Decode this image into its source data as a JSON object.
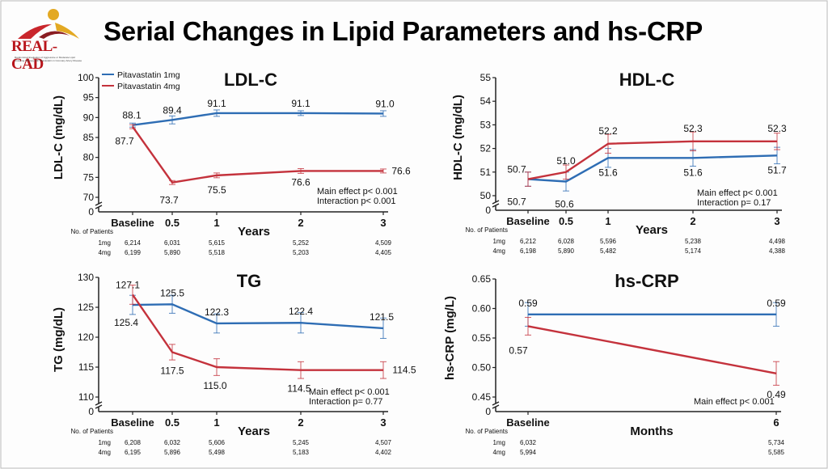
{
  "logo": {
    "text": "REAL-CAD",
    "subtitle": "Randomized Evaluation of Aggressive or Moderate Lipid Lowering Therapy with Pitavastatin in Coronary Artery Disease"
  },
  "title": "Serial Changes in Lipid Parameters and hs-CRP",
  "colors": {
    "pitavastatin_1mg": "#2e6db4",
    "pitavastatin_4mg": "#c4323c",
    "axis": "#222222"
  },
  "chart_data": [
    {
      "type": "line",
      "title": "LDL-C",
      "ylabel": "LDL-C (mg/dL)",
      "xlabel": "Years",
      "categories": [
        "Baseline",
        "0.5",
        "1",
        "2",
        "3"
      ],
      "x": [
        0,
        0.5,
        1,
        2,
        3
      ],
      "ylim": [
        70,
        100
      ],
      "yticks": [
        "70",
        "75",
        "80",
        "85",
        "90",
        "95",
        "100"
      ],
      "axis_break": true,
      "legend": {
        "placement": "top-left",
        "entries": [
          "Pitavastatin 1mg",
          "Pitavastatin 4mg"
        ]
      },
      "series": [
        {
          "name": "Pitavastatin 1mg",
          "values": [
            88.1,
            89.4,
            91.1,
            91.1,
            91.0
          ],
          "labels": [
            "88.1",
            "89.4",
            "91.1",
            "91.1",
            "91.0"
          ],
          "error": [
            0.5,
            1.0,
            0.8,
            0.6,
            0.7
          ]
        },
        {
          "name": "Pitavastatin 4mg",
          "values": [
            87.7,
            73.7,
            75.5,
            76.6,
            76.6
          ],
          "labels": [
            "87.7",
            "73.7",
            "75.5",
            "76.6",
            "76.6"
          ],
          "error": [
            0.5,
            0.5,
            0.6,
            0.6,
            0.5
          ]
        }
      ],
      "stats": [
        "Main effect p< 0.001",
        "Interaction p< 0.001"
      ],
      "patients": {
        "header": "No. of Patients",
        "rows": [
          {
            "label": "1mg",
            "values": [
              "6,214",
              "6,031",
              "5,615",
              "5,252",
              "4,509"
            ]
          },
          {
            "label": "4mg",
            "values": [
              "6,199",
              "5,890",
              "5,518",
              "5,203",
              "4,405"
            ]
          }
        ]
      }
    },
    {
      "type": "line",
      "title": "HDL-C",
      "ylabel": "HDL-C (mg/dL)",
      "xlabel": "Years",
      "categories": [
        "Baseline",
        "0.5",
        "1",
        "2",
        "3"
      ],
      "x": [
        0,
        0.5,
        1,
        2,
        3
      ],
      "ylim": [
        50,
        55
      ],
      "yticks": [
        "50",
        "51",
        "52",
        "53",
        "54",
        "55"
      ],
      "axis_break": true,
      "series": [
        {
          "name": "Pitavastatin 1mg",
          "values": [
            50.7,
            50.6,
            51.6,
            51.6,
            51.7
          ],
          "labels": [
            "50.7",
            "50.6",
            "51.6",
            "51.6",
            "51.7"
          ],
          "error": [
            0.3,
            0.4,
            0.4,
            0.35,
            0.35
          ]
        },
        {
          "name": "Pitavastatin 4mg",
          "values": [
            50.7,
            51.0,
            52.2,
            52.3,
            52.3
          ],
          "labels": [
            "50.7",
            "51.0",
            "52.2",
            "52.3",
            "52.3"
          ],
          "error": [
            0.3,
            0.3,
            0.4,
            0.4,
            0.35
          ]
        }
      ],
      "stats": [
        "Main effect p< 0.001",
        "Interaction p= 0.17"
      ],
      "patients": {
        "header": "No. of Patients",
        "rows": [
          {
            "label": "1mg",
            "values": [
              "6,212",
              "6,028",
              "5,596",
              "5,238",
              "4,498"
            ]
          },
          {
            "label": "4mg",
            "values": [
              "6,198",
              "5,890",
              "5,482",
              "5,174",
              "4,388"
            ]
          }
        ]
      }
    },
    {
      "type": "line",
      "title": "TG",
      "ylabel": "TG (mg/dL)",
      "xlabel": "Years",
      "categories": [
        "Baseline",
        "0.5",
        "1",
        "2",
        "3"
      ],
      "x": [
        0,
        0.5,
        1,
        2,
        3
      ],
      "ylim": [
        110,
        130
      ],
      "yticks": [
        "110",
        "115",
        "120",
        "125",
        "130"
      ],
      "axis_break": true,
      "series": [
        {
          "name": "Pitavastatin 1mg",
          "values": [
            125.4,
            125.5,
            122.3,
            122.4,
            121.5
          ],
          "labels": [
            "125.4",
            "125.5",
            "122.3",
            "122.4",
            "121.5"
          ],
          "error": [
            1.6,
            1.5,
            1.6,
            1.7,
            1.7
          ]
        },
        {
          "name": "Pitavastatin 4mg",
          "values": [
            127.1,
            117.5,
            115.0,
            114.5,
            114.5
          ],
          "labels": [
            "127.1",
            "117.5",
            "115.0",
            "114.5",
            "114.5"
          ],
          "error": [
            1.6,
            1.3,
            1.4,
            1.4,
            1.4
          ]
        }
      ],
      "stats": [
        "Main effect p< 0.001",
        "Interaction p= 0.77"
      ],
      "patients": {
        "header": "No. of Patients",
        "rows": [
          {
            "label": "1mg",
            "values": [
              "6,208",
              "6,032",
              "5,606",
              "5,245",
              "4,507"
            ]
          },
          {
            "label": "4mg",
            "values": [
              "6,195",
              "5,896",
              "5,498",
              "5,183",
              "4,402"
            ]
          }
        ]
      }
    },
    {
      "type": "line",
      "title": "hs-CRP",
      "ylabel": "hs-CRP (mg/L)",
      "xlabel": "Months",
      "categories": [
        "Baseline",
        "6"
      ],
      "x": [
        0,
        6
      ],
      "ylim": [
        0.45,
        0.65
      ],
      "yticks": [
        "0.45",
        "0.50",
        "0.55",
        "0.60",
        "0.65"
      ],
      "axis_break": true,
      "series": [
        {
          "name": "Pitavastatin 1mg",
          "values": [
            0.59,
            0.59
          ],
          "labels": [
            "0.59",
            "0.59"
          ],
          "error": [
            0.02,
            0.02
          ]
        },
        {
          "name": "Pitavastatin 4mg",
          "values": [
            0.57,
            0.49
          ],
          "labels": [
            "0.57",
            "0.49"
          ],
          "error": [
            0.015,
            0.02
          ]
        }
      ],
      "stats": [
        "Main effect p< 0.001"
      ],
      "patients": {
        "header": "No. of Patients",
        "rows": [
          {
            "label": "1mg",
            "values": [
              "6,032",
              "5,734"
            ]
          },
          {
            "label": "4mg",
            "values": [
              "5,994",
              "5,585"
            ]
          }
        ]
      }
    }
  ]
}
